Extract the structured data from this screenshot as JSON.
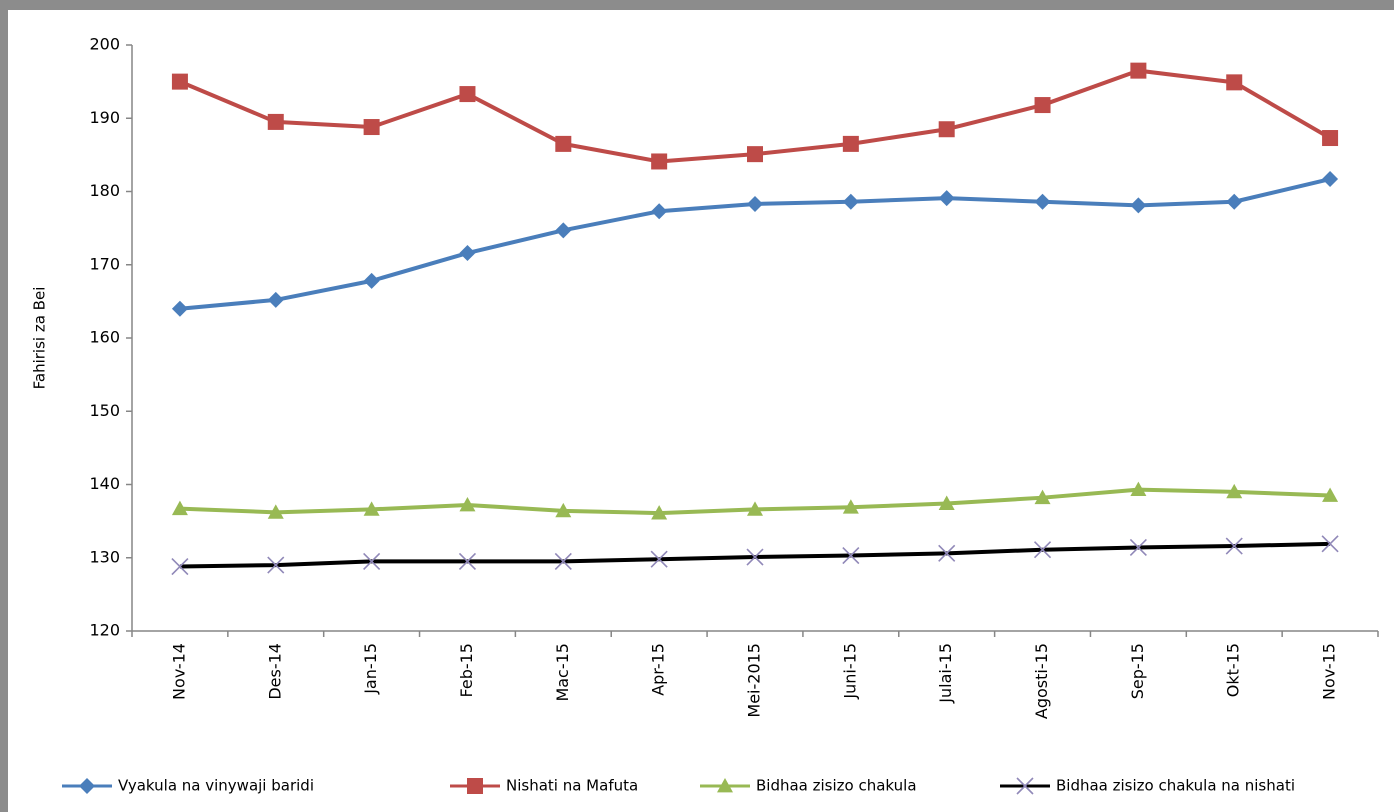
{
  "chart_data": {
    "type": "line",
    "y_label": "Fahirisi za Bei",
    "categories": [
      "Nov-14",
      "Des-14",
      "Jan-15",
      "Feb-15",
      "Mac-15",
      "Apr-15",
      "Mei-2015",
      "Juni-15",
      "Julai-15",
      "Agosti-15",
      "Sep-15",
      "Okt-15",
      "Nov-15"
    ],
    "series": [
      {
        "name": "Vyakula na vinywaji baridi",
        "color": "#4a7ebb",
        "marker": "diamond",
        "marker_color": "#4a7ebb",
        "values": [
          164.0,
          165.2,
          167.8,
          171.6,
          174.7,
          177.3,
          178.3,
          178.6,
          179.1,
          178.6,
          178.1,
          178.6,
          181.7
        ]
      },
      {
        "name": "Nishati na Mafuta",
        "color": "#be4b48",
        "marker": "square",
        "marker_color": "#be4b48",
        "values": [
          195.0,
          189.5,
          188.8,
          193.3,
          186.5,
          184.1,
          185.1,
          186.5,
          188.5,
          191.8,
          196.5,
          194.9,
          187.3
        ]
      },
      {
        "name": "Bidhaa zisizo chakula",
        "color": "#98b954",
        "marker": "triangle",
        "marker_color": "#98b954",
        "values": [
          136.7,
          136.2,
          136.6,
          137.2,
          136.4,
          136.1,
          136.6,
          136.9,
          137.4,
          138.2,
          139.3,
          139.0,
          138.5
        ]
      },
      {
        "name": "Bidhaa zisizo chakula  na nishati",
        "color": "#000000",
        "marker": "x",
        "marker_color": "#9088b8",
        "values": [
          128.8,
          129.0,
          129.5,
          129.5,
          129.5,
          129.8,
          130.1,
          130.3,
          130.6,
          131.1,
          131.4,
          131.6,
          131.9
        ]
      }
    ],
    "ylim": [
      120,
      200
    ],
    "yticks": [
      120,
      130,
      140,
      150,
      160,
      170,
      180,
      190,
      200
    ],
    "grid": false,
    "legend": "bottom"
  }
}
